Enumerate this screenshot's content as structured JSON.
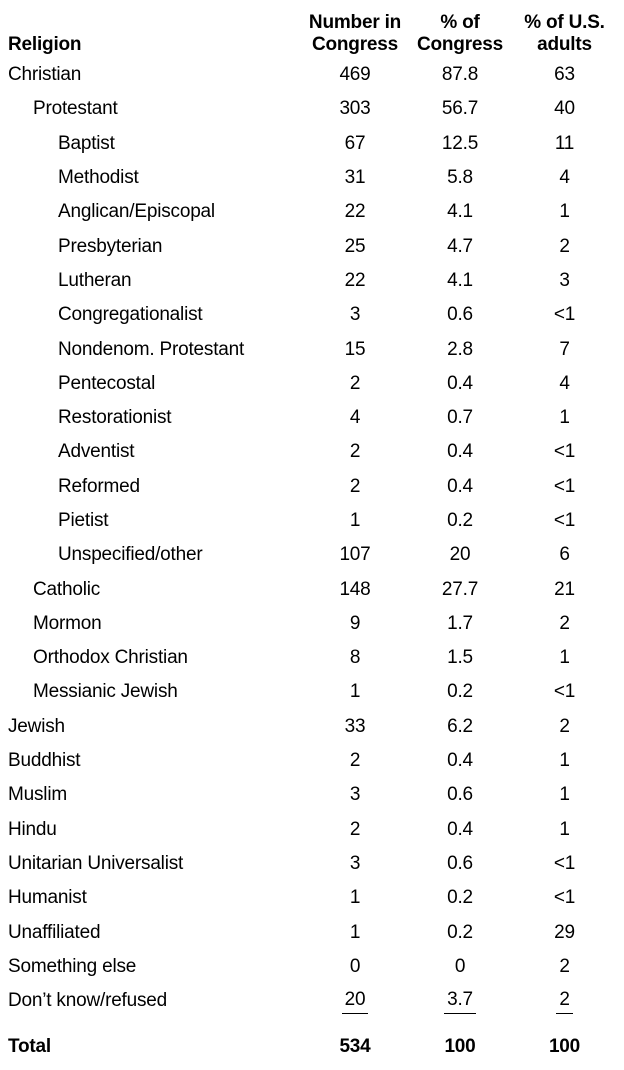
{
  "page": {
    "background_color": "#ffffff",
    "text_color": "#000000"
  },
  "table": {
    "header": {
      "religion": "Religion",
      "col1_line1": "Number in",
      "col1_line2": "Congress",
      "col2_line1": "% of",
      "col2_line2": "Congress",
      "col3_line1": "% of U.S.",
      "col3_line2": "adults"
    }
  },
  "chart_data": {
    "type": "table",
    "title": "",
    "columns": [
      "Religion",
      "Number in Congress",
      "% of Congress",
      "% of U.S. adults"
    ],
    "rows": [
      {
        "label": "Christian",
        "indent": 0,
        "number_in_congress": "469",
        "pct_of_congress": "87.8",
        "pct_of_us_adults": "63"
      },
      {
        "label": "Protestant",
        "indent": 1,
        "number_in_congress": "303",
        "pct_of_congress": "56.7",
        "pct_of_us_adults": "40"
      },
      {
        "label": "Baptist",
        "indent": 2,
        "number_in_congress": "67",
        "pct_of_congress": "12.5",
        "pct_of_us_adults": "11"
      },
      {
        "label": "Methodist",
        "indent": 2,
        "number_in_congress": "31",
        "pct_of_congress": "5.8",
        "pct_of_us_adults": "4"
      },
      {
        "label": "Anglican/Episcopal",
        "indent": 2,
        "number_in_congress": "22",
        "pct_of_congress": "4.1",
        "pct_of_us_adults": "1"
      },
      {
        "label": "Presbyterian",
        "indent": 2,
        "number_in_congress": "25",
        "pct_of_congress": "4.7",
        "pct_of_us_adults": "2"
      },
      {
        "label": "Lutheran",
        "indent": 2,
        "number_in_congress": "22",
        "pct_of_congress": "4.1",
        "pct_of_us_adults": "3"
      },
      {
        "label": "Congregationalist",
        "indent": 2,
        "number_in_congress": "3",
        "pct_of_congress": "0.6",
        "pct_of_us_adults": "<1"
      },
      {
        "label": "Nondenom. Protestant",
        "indent": 2,
        "number_in_congress": "15",
        "pct_of_congress": "2.8",
        "pct_of_us_adults": "7"
      },
      {
        "label": "Pentecostal",
        "indent": 2,
        "number_in_congress": "2",
        "pct_of_congress": "0.4",
        "pct_of_us_adults": "4"
      },
      {
        "label": "Restorationist",
        "indent": 2,
        "number_in_congress": "4",
        "pct_of_congress": "0.7",
        "pct_of_us_adults": "1"
      },
      {
        "label": "Adventist",
        "indent": 2,
        "number_in_congress": "2",
        "pct_of_congress": "0.4",
        "pct_of_us_adults": "<1"
      },
      {
        "label": "Reformed",
        "indent": 2,
        "number_in_congress": "2",
        "pct_of_congress": "0.4",
        "pct_of_us_adults": "<1"
      },
      {
        "label": "Pietist",
        "indent": 2,
        "number_in_congress": "1",
        "pct_of_congress": "0.2",
        "pct_of_us_adults": "<1"
      },
      {
        "label": "Unspecified/other",
        "indent": 2,
        "number_in_congress": "107",
        "pct_of_congress": "20",
        "pct_of_us_adults": "6"
      },
      {
        "label": "Catholic",
        "indent": 1,
        "number_in_congress": "148",
        "pct_of_congress": "27.7",
        "pct_of_us_adults": "21"
      },
      {
        "label": "Mormon",
        "indent": 1,
        "number_in_congress": "9",
        "pct_of_congress": "1.7",
        "pct_of_us_adults": "2"
      },
      {
        "label": "Orthodox Christian",
        "indent": 1,
        "number_in_congress": "8",
        "pct_of_congress": "1.5",
        "pct_of_us_adults": "1"
      },
      {
        "label": "Messianic Jewish",
        "indent": 1,
        "number_in_congress": "1",
        "pct_of_congress": "0.2",
        "pct_of_us_adults": "<1"
      },
      {
        "label": "Jewish",
        "indent": 0,
        "number_in_congress": "33",
        "pct_of_congress": "6.2",
        "pct_of_us_adults": "2"
      },
      {
        "label": "Buddhist",
        "indent": 0,
        "number_in_congress": "2",
        "pct_of_congress": "0.4",
        "pct_of_us_adults": "1"
      },
      {
        "label": "Muslim",
        "indent": 0,
        "number_in_congress": "3",
        "pct_of_congress": "0.6",
        "pct_of_us_adults": "1"
      },
      {
        "label": "Hindu",
        "indent": 0,
        "number_in_congress": "2",
        "pct_of_congress": "0.4",
        "pct_of_us_adults": "1"
      },
      {
        "label": "Unitarian Universalist",
        "indent": 0,
        "number_in_congress": "3",
        "pct_of_congress": "0.6",
        "pct_of_us_adults": "<1"
      },
      {
        "label": "Humanist",
        "indent": 0,
        "number_in_congress": "1",
        "pct_of_congress": "0.2",
        "pct_of_us_adults": "<1"
      },
      {
        "label": "Unaffiliated",
        "indent": 0,
        "number_in_congress": "1",
        "pct_of_congress": "0.2",
        "pct_of_us_adults": "29"
      },
      {
        "label": "Something else",
        "indent": 0,
        "number_in_congress": "0",
        "pct_of_congress": "0",
        "pct_of_us_adults": "2"
      },
      {
        "label": "Don’t know/refused",
        "indent": 0,
        "number_in_congress": "20",
        "pct_of_congress": "3.7",
        "pct_of_us_adults": "2",
        "underline": true
      },
      {
        "label": "Total",
        "indent": 0,
        "number_in_congress": "534",
        "pct_of_congress": "100",
        "pct_of_us_adults": "100",
        "bold": true
      }
    ]
  }
}
